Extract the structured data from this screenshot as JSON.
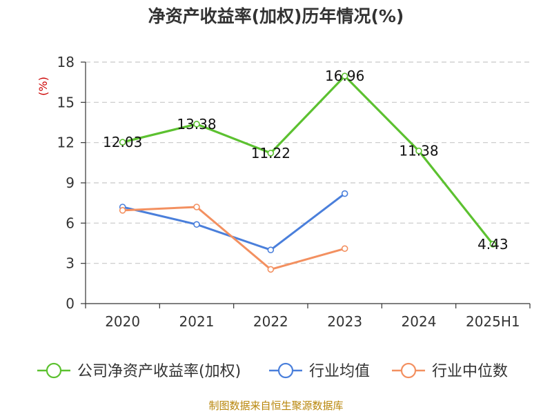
{
  "chart_data": {
    "type": "line",
    "title": "净资产收益率(加权)历年情况(%)",
    "ylabel": "(%)",
    "categories": [
      "2020",
      "2021",
      "2022",
      "2023",
      "2024",
      "2025H1"
    ],
    "ylim": [
      0,
      18
    ],
    "yticks": [
      0,
      3,
      6,
      9,
      12,
      15,
      18
    ],
    "grid": true,
    "legend_position": "bottom",
    "series": [
      {
        "name": "公司净资产收益率(加权)",
        "color": "#5cc130",
        "values": [
          12.03,
          13.38,
          11.22,
          16.96,
          11.38,
          4.43
        ],
        "labels": [
          "12.03",
          "13.38",
          "11.22",
          "16.96",
          "11.38",
          "4.43"
        ]
      },
      {
        "name": "行业均值",
        "color": "#4a7fdb",
        "values": [
          7.2,
          5.9,
          4.0,
          8.2,
          null,
          null
        ]
      },
      {
        "name": "行业中位数",
        "color": "#f39060",
        "values": [
          6.95,
          7.2,
          2.55,
          4.1,
          null,
          null
        ]
      }
    ],
    "source": "制图数据来自恒生聚源数据库"
  }
}
